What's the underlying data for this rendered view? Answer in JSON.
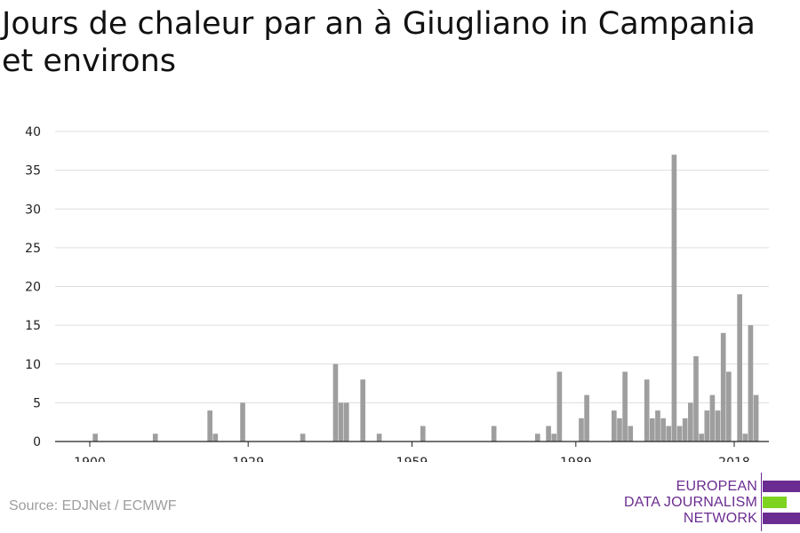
{
  "title": "Jours de chaleur par an à Giugliano in Campania et environs",
  "source": "Source: EDJNet / ECMWF",
  "logo": {
    "line1": "EUROPEAN",
    "line2": "DATA JOURNALISM",
    "line3": "NETWORK",
    "colors": {
      "purple": "#6b2c91",
      "green": "#7ed321"
    }
  },
  "chart_data": {
    "type": "bar",
    "title": "Jours de chaleur par an à Giugliano in Campania et environs",
    "xlabel": "",
    "ylabel": "",
    "ylim": [
      0,
      40
    ],
    "xlim": [
      1893,
      2024
    ],
    "y_ticks": [
      0,
      5,
      10,
      15,
      20,
      25,
      30,
      35,
      40
    ],
    "x_ticks": [
      1900,
      1929,
      1959,
      1989,
      2018
    ],
    "grid": true,
    "bar_color": "#9e9e9e",
    "x": [
      1901,
      1912,
      1922,
      1923,
      1928,
      1939,
      1945,
      1946,
      1947,
      1950,
      1953,
      1961,
      1974,
      1982,
      1984,
      1985,
      1986,
      1990,
      1991,
      1996,
      1997,
      1998,
      1999,
      2002,
      2003,
      2004,
      2005,
      2006,
      2007,
      2008,
      2009,
      2010,
      2011,
      2012,
      2013,
      2014,
      2015,
      2016,
      2017,
      2019,
      2020,
      2021,
      2022
    ],
    "values": [
      1,
      1,
      4,
      1,
      5,
      1,
      10,
      5,
      5,
      8,
      1,
      2,
      2,
      1,
      2,
      1,
      9,
      3,
      6,
      4,
      3,
      9,
      2,
      8,
      3,
      4,
      3,
      2,
      37,
      2,
      3,
      5,
      11,
      1,
      4,
      6,
      4,
      14,
      9,
      19,
      1,
      15,
      6
    ]
  }
}
